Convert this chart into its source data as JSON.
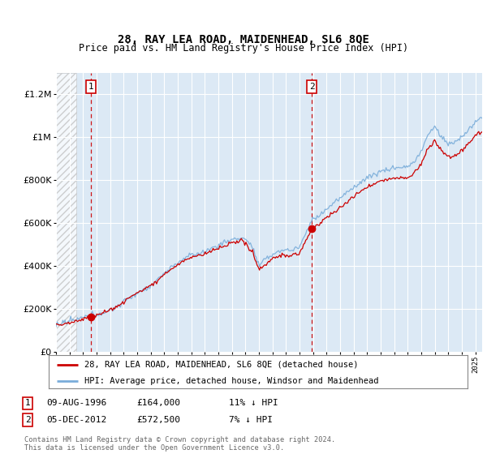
{
  "title": "28, RAY LEA ROAD, MAIDENHEAD, SL6 8QE",
  "subtitle": "Price paid vs. HM Land Registry's House Price Index (HPI)",
  "legend_line1": "28, RAY LEA ROAD, MAIDENHEAD, SL6 8QE (detached house)",
  "legend_line2": "HPI: Average price, detached house, Windsor and Maidenhead",
  "footer": "Contains HM Land Registry data © Crown copyright and database right 2024.\nThis data is licensed under the Open Government Licence v3.0.",
  "sale1_date": "09-AUG-1996",
  "sale1_price": 164000,
  "sale1_hpi": "11% ↓ HPI",
  "sale1_label": "1",
  "sale1_x": 1996.6,
  "sale2_date": "05-DEC-2012",
  "sale2_price": 572500,
  "sale2_hpi": "7% ↓ HPI",
  "sale2_label": "2",
  "sale2_x": 2012.92,
  "xmin": 1994.0,
  "xmax": 2025.5,
  "ymin": 0,
  "ymax": 1300000,
  "hatch_end_x": 1995.5,
  "bg_color": "#dce9f5",
  "hatch_color": "#c5d8ea",
  "grid_color": "#ffffff",
  "red_line_color": "#cc0000",
  "blue_line_color": "#7aadda",
  "sale_dot_color": "#cc0000",
  "dashed_line_color": "#cc0000"
}
